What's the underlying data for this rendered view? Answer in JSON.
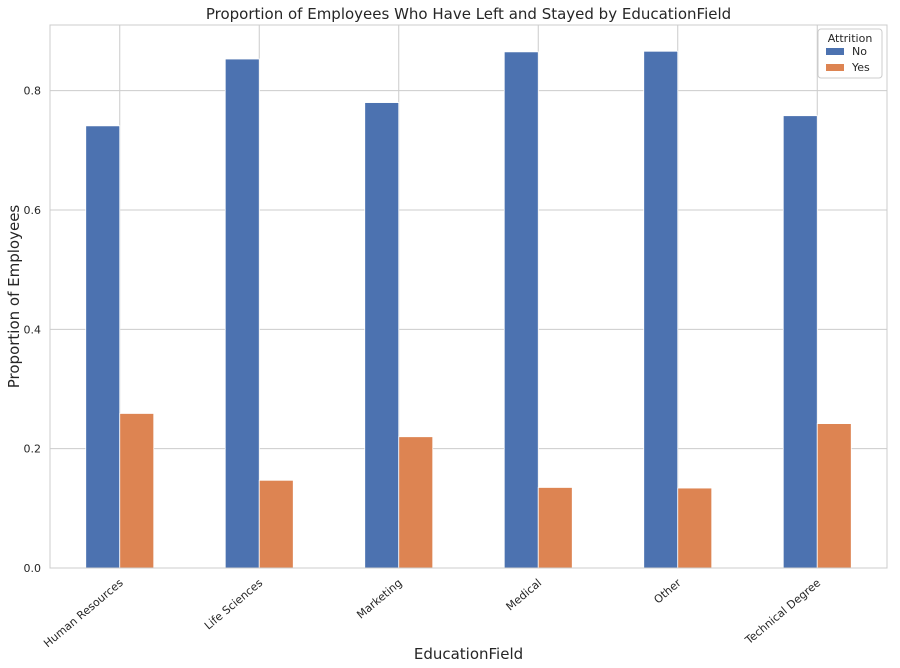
{
  "chart_data": {
    "type": "bar",
    "title": "Proportion of Employees Who Have Left and Stayed by EducationField",
    "xlabel": "EducationField",
    "ylabel": "Proportion of Employees",
    "categories": [
      "Human Resources",
      "Life Sciences",
      "Marketing",
      "Medical",
      "Other",
      "Technical Degree"
    ],
    "series": [
      {
        "name": "No",
        "color": "#4c72b0",
        "values": [
          0.741,
          0.853,
          0.78,
          0.865,
          0.866,
          0.758
        ]
      },
      {
        "name": "Yes",
        "color": "#dd8452",
        "values": [
          0.259,
          0.147,
          0.22,
          0.135,
          0.134,
          0.242
        ]
      }
    ],
    "ylim": [
      0,
      0.91
    ],
    "yticks": [
      0.0,
      0.2,
      0.4,
      0.6,
      0.8
    ],
    "ytick_labels": [
      "0.0",
      "0.2",
      "0.4",
      "0.6",
      "0.8"
    ],
    "grid": true,
    "legend": {
      "title": "Attrition",
      "placement": "top-right"
    }
  }
}
